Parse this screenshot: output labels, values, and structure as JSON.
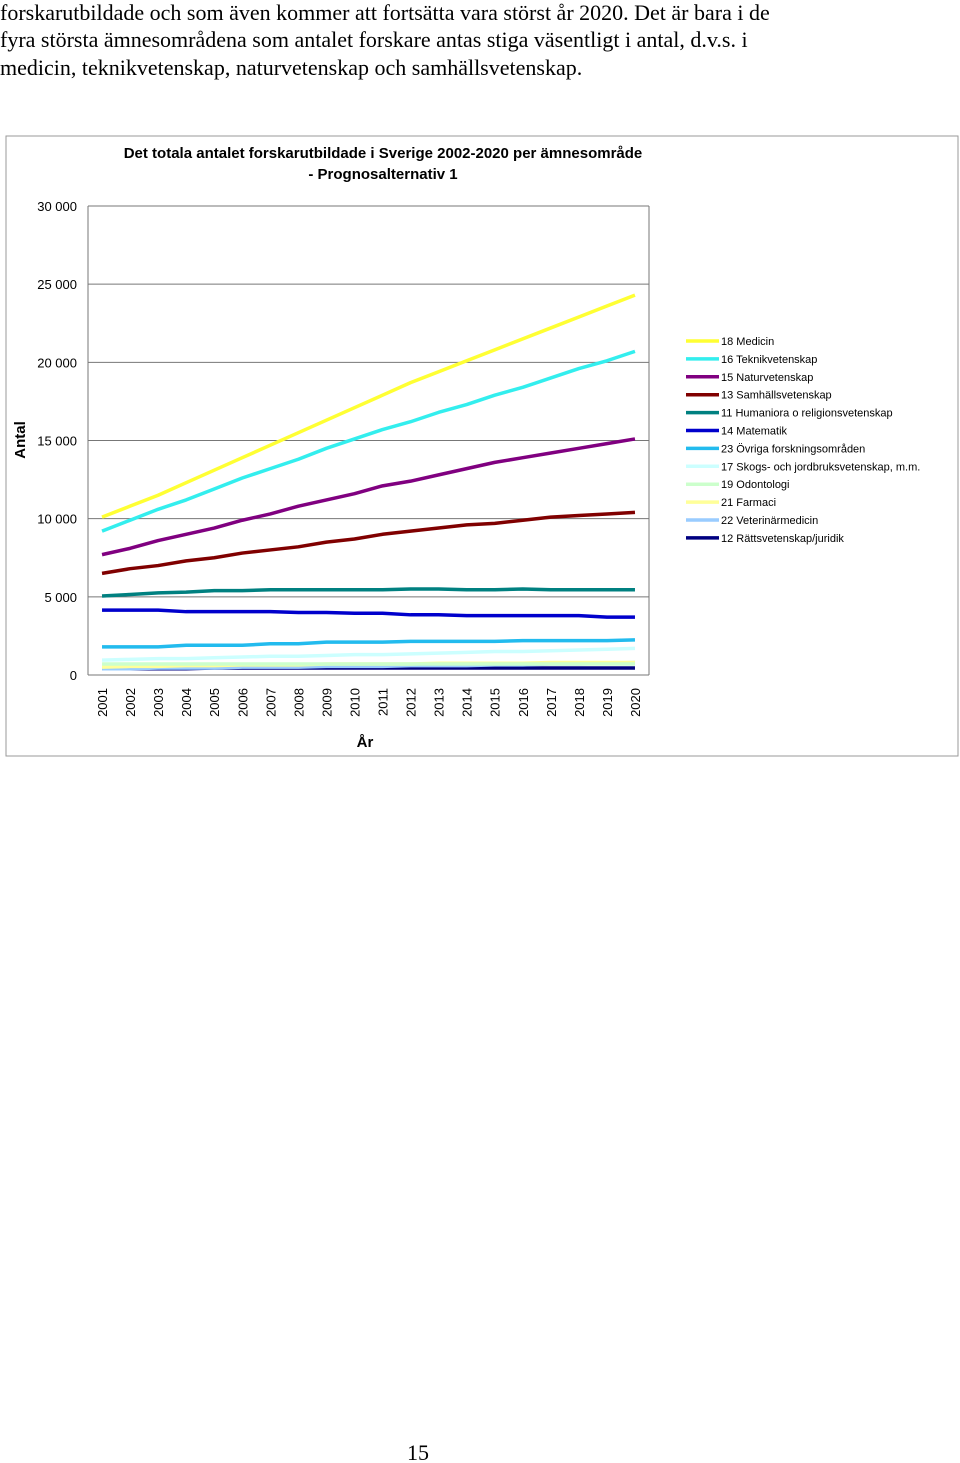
{
  "paragraph": [
    "forskarutbildade och som även kommer att fortsätta vara störst år 2020. Det är bara i de",
    "fyra största ämnesområdena som antalet forskare antas stiga väsentligt i antal, d.v.s. i",
    "medicin, teknikvetenskap, naturvetenskap och samhällsvetenskap."
  ],
  "chart_data": {
    "type": "line",
    "title": [
      "Det totala antalet forskarutbildade i Sverige 2002-2020 per ämnesområde",
      "- Prognosalternativ 1"
    ],
    "y_label": "Antal",
    "x_label": "År",
    "categories": [
      "2001",
      "2002",
      "2003",
      "2004",
      "2005",
      "2006",
      "2007",
      "2008",
      "2009",
      "2010",
      "2011",
      "2012",
      "2013",
      "2014",
      "2015",
      "2016",
      "2017",
      "2018",
      "2019",
      "2020"
    ],
    "ylim": [
      0,
      30000
    ],
    "yticks": [
      0,
      {
        "value": 5000,
        "label": "5 000"
      },
      {
        "value": 10000,
        "label": "10 000"
      },
      {
        "value": 15000,
        "label": "15 000"
      },
      {
        "value": 20000,
        "label": "20 000"
      },
      {
        "value": 25000,
        "label": "25 000"
      },
      {
        "value": 30000,
        "label": "30 000"
      }
    ],
    "grid": true,
    "legend": "right",
    "series": [
      {
        "name": "18 Medicin",
        "color": "#ffff33",
        "values": [
          10100,
          10800,
          11500,
          12300,
          13100,
          13900,
          14700,
          15500,
          16300,
          17100,
          17900,
          18700,
          19400,
          20100,
          20800,
          21500,
          22200,
          22900,
          23600,
          24300
        ]
      },
      {
        "name": "16 Teknikvetenskap",
        "color": "#33eeee",
        "values": [
          9200,
          9900,
          10600,
          11200,
          11900,
          12600,
          13200,
          13800,
          14500,
          15100,
          15700,
          16200,
          16800,
          17300,
          17900,
          18400,
          19000,
          19600,
          20100,
          20700
        ]
      },
      {
        "name": "15 Naturvetenskap",
        "color": "#800080",
        "values": [
          7700,
          8100,
          8600,
          9000,
          9400,
          9900,
          10300,
          10800,
          11200,
          11600,
          12100,
          12400,
          12800,
          13200,
          13600,
          13900,
          14200,
          14500,
          14800,
          15100
        ]
      },
      {
        "name": "13 Samhällsvetenskap",
        "color": "#800000",
        "values": [
          6500,
          6800,
          7000,
          7300,
          7500,
          7800,
          8000,
          8200,
          8500,
          8700,
          9000,
          9200,
          9400,
          9600,
          9700,
          9900,
          10100,
          10200,
          10300,
          10400
        ]
      },
      {
        "name": "11 Humaniora o religionsvetenskap",
        "color": "#008080",
        "values": [
          5050,
          5150,
          5250,
          5300,
          5400,
          5400,
          5450,
          5450,
          5450,
          5450,
          5450,
          5500,
          5500,
          5450,
          5450,
          5500,
          5450,
          5450,
          5450,
          5450
        ]
      },
      {
        "name": "14 Matematik",
        "color": "#0000cc",
        "values": [
          4150,
          4150,
          4150,
          4050,
          4050,
          4050,
          4050,
          4000,
          4000,
          3950,
          3950,
          3850,
          3850,
          3800,
          3800,
          3800,
          3800,
          3800,
          3700,
          3700
        ]
      },
      {
        "name": "23 Övriga forskningsområden",
        "color": "#22bbee",
        "values": [
          1800,
          1800,
          1800,
          1900,
          1900,
          1900,
          2000,
          2000,
          2100,
          2100,
          2100,
          2150,
          2150,
          2150,
          2150,
          2200,
          2200,
          2200,
          2200,
          2250
        ]
      },
      {
        "name": "17 Skogs- och jordbruksvetenskap, m.m.",
        "color": "#ccffff",
        "values": [
          950,
          1000,
          1050,
          1050,
          1100,
          1150,
          1200,
          1200,
          1250,
          1300,
          1300,
          1350,
          1400,
          1450,
          1500,
          1500,
          1550,
          1600,
          1650,
          1700
        ]
      },
      {
        "name": "19 Odontologi",
        "color": "#ccffcc",
        "values": [
          700,
          700,
          700,
          700,
          700,
          700,
          700,
          700,
          700,
          700,
          700,
          700,
          700,
          700,
          700,
          700,
          700,
          700,
          700,
          700
        ]
      },
      {
        "name": "21 Farmaci",
        "color": "#ffff99",
        "values": [
          500,
          550,
          550,
          600,
          600,
          650,
          650,
          650,
          700,
          700,
          700,
          700,
          750,
          750,
          750,
          750,
          800,
          800,
          800,
          800
        ]
      },
      {
        "name": "22 Veterinärmedicin",
        "color": "#99ccff",
        "values": [
          400,
          400,
          450,
          450,
          450,
          500,
          500,
          500,
          550,
          550,
          550,
          600,
          600,
          600,
          650,
          650,
          700,
          700,
          750,
          800
        ]
      },
      {
        "name": "12 Rättsvetenskap/juridik",
        "color": "#000080",
        "values": [
          400,
          400,
          400,
          400,
          450,
          450,
          450,
          450,
          450,
          450,
          450,
          450,
          450,
          450,
          450,
          450,
          450,
          450,
          450,
          450
        ]
      }
    ]
  },
  "page_number": "15"
}
